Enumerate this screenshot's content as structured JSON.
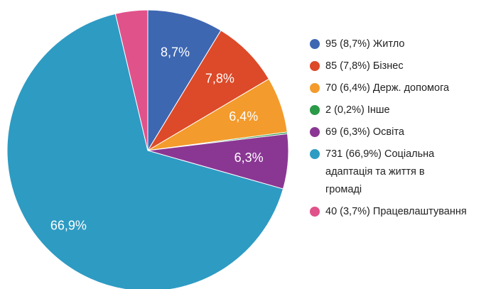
{
  "chart_data": {
    "type": "pie",
    "categories": [
      "95 (8,7%) Житло",
      "85 (7,8%) Бізнес",
      "70 (6,4%) Держ. допомога",
      "2 (0,2%) Інше",
      "69 (6,3%) Освіта",
      "731 (66,9%) Соціальна адаптація та життя в громаді",
      "40 (3,7%) Працевлаштування"
    ],
    "values": [
      8.7,
      7.8,
      6.4,
      0.2,
      6.3,
      66.9,
      3.7
    ],
    "value_labels": [
      "8,7%",
      "7,8%",
      "6,4%",
      null,
      "6,3%",
      "66,9%",
      null
    ],
    "colors": [
      "#3e67b2",
      "#dc4a29",
      "#f39b2c",
      "#2a9a48",
      "#8a3794",
      "#2e9bc3",
      "#e0528a"
    ],
    "legend": "right"
  }
}
